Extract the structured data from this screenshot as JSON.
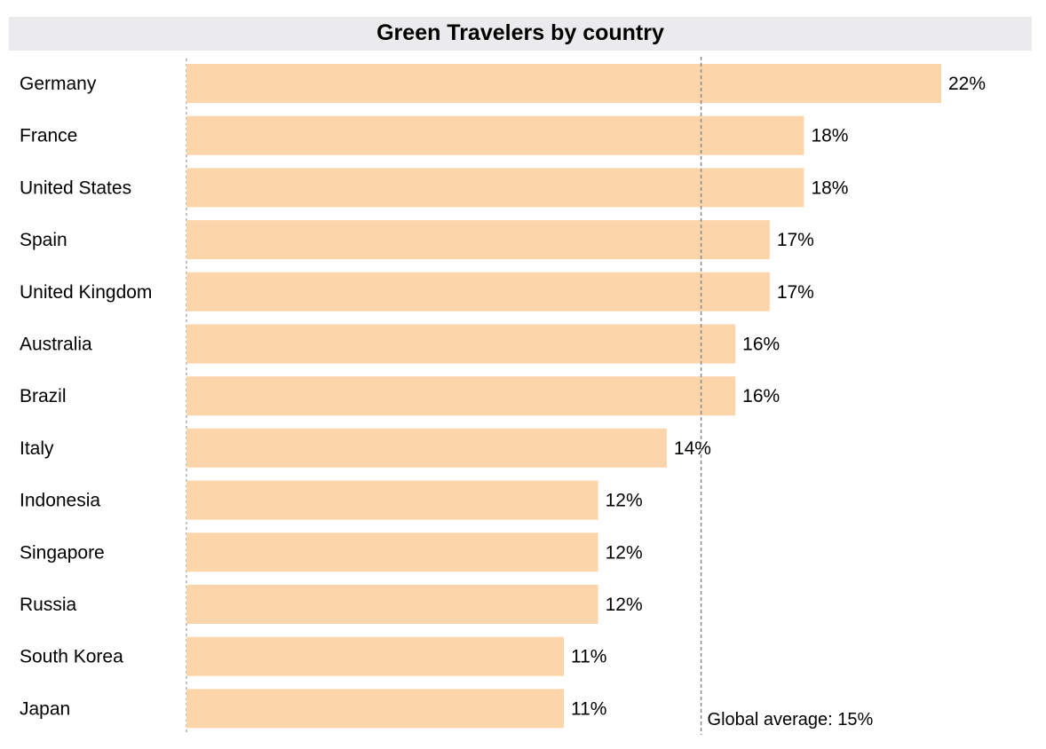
{
  "chart_data": {
    "type": "bar",
    "orientation": "horizontal",
    "title": "Green Travelers by country",
    "categories": [
      "Germany",
      "France",
      "United States",
      "Spain",
      "United Kingdom",
      "Australia",
      "Brazil",
      "Italy",
      "Indonesia",
      "Singapore",
      "Russia",
      "South Korea",
      "Japan"
    ],
    "values": [
      22,
      18,
      18,
      17,
      17,
      16,
      16,
      14,
      12,
      12,
      12,
      11,
      11
    ],
    "value_labels": [
      "22%",
      "18%",
      "18%",
      "17%",
      "17%",
      "16%",
      "16%",
      "14%",
      "12%",
      "12%",
      "12%",
      "11%",
      "11%"
    ],
    "bar_color": "#fdd5aa",
    "xlim": [
      0,
      22
    ],
    "reference_line": {
      "value": 15,
      "label": "Global average: 15%"
    },
    "grid": false,
    "legend": "none"
  }
}
